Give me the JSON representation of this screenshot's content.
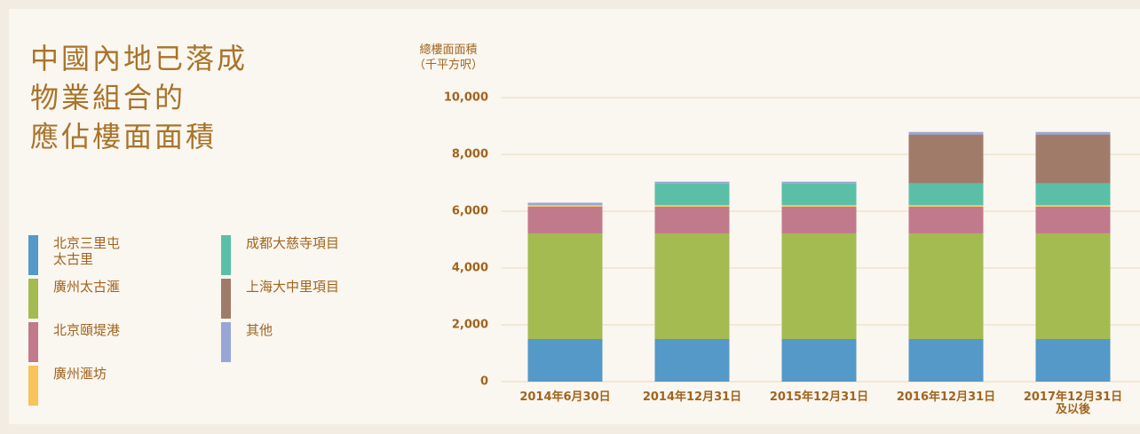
{
  "chart_data": {
    "type": "stacked_bar",
    "title": [
      "中國內地已落成",
      "物業組合的",
      "應佔樓面面積"
    ],
    "y_label": [
      "總樓面面積",
      "（千平方呎）"
    ],
    "categories": [
      "2014年6月30日",
      "2014年12月31日",
      "2015年12月31日",
      "2016年12月31日",
      "2017年12月31日\n及以後"
    ],
    "series": [
      {
        "name": "北京三里屯\n太古里",
        "color": "#5499c7",
        "values": [
          1500,
          1500,
          1500,
          1500,
          1500
        ]
      },
      {
        "name": "廣州太古滙",
        "color": "#a3bb50",
        "values": [
          3720,
          3720,
          3720,
          3720,
          3720
        ]
      },
      {
        "name": "北京頤堤港",
        "color": "#c07a8b",
        "values": [
          940,
          940,
          940,
          940,
          940
        ]
      },
      {
        "name": "廣州滙坊",
        "color": "#f7c35a",
        "values": [
          60,
          60,
          60,
          60,
          60
        ]
      },
      {
        "name": "成都大慈寺項目",
        "color": "#5bbfa8",
        "values": [
          0,
          760,
          760,
          760,
          760
        ]
      },
      {
        "name": "上海大中里項目",
        "color": "#a07b6a",
        "values": [
          0,
          0,
          0,
          1720,
          1720
        ]
      },
      {
        "name": "其他",
        "color": "#98a6d6",
        "values": [
          80,
          60,
          60,
          90,
          90
        ]
      }
    ],
    "ylim": [
      0,
      10000
    ],
    "yticks": [
      0,
      {
        "value": 2000,
        "label": "2,000"
      },
      {
        "value": 4000,
        "label": "4,000"
      },
      {
        "value": 6000,
        "label": "6,000"
      },
      {
        "value": 8000,
        "label": "8,000"
      },
      {
        "value": 10000,
        "label": "10,000"
      }
    ],
    "grid": true
  }
}
